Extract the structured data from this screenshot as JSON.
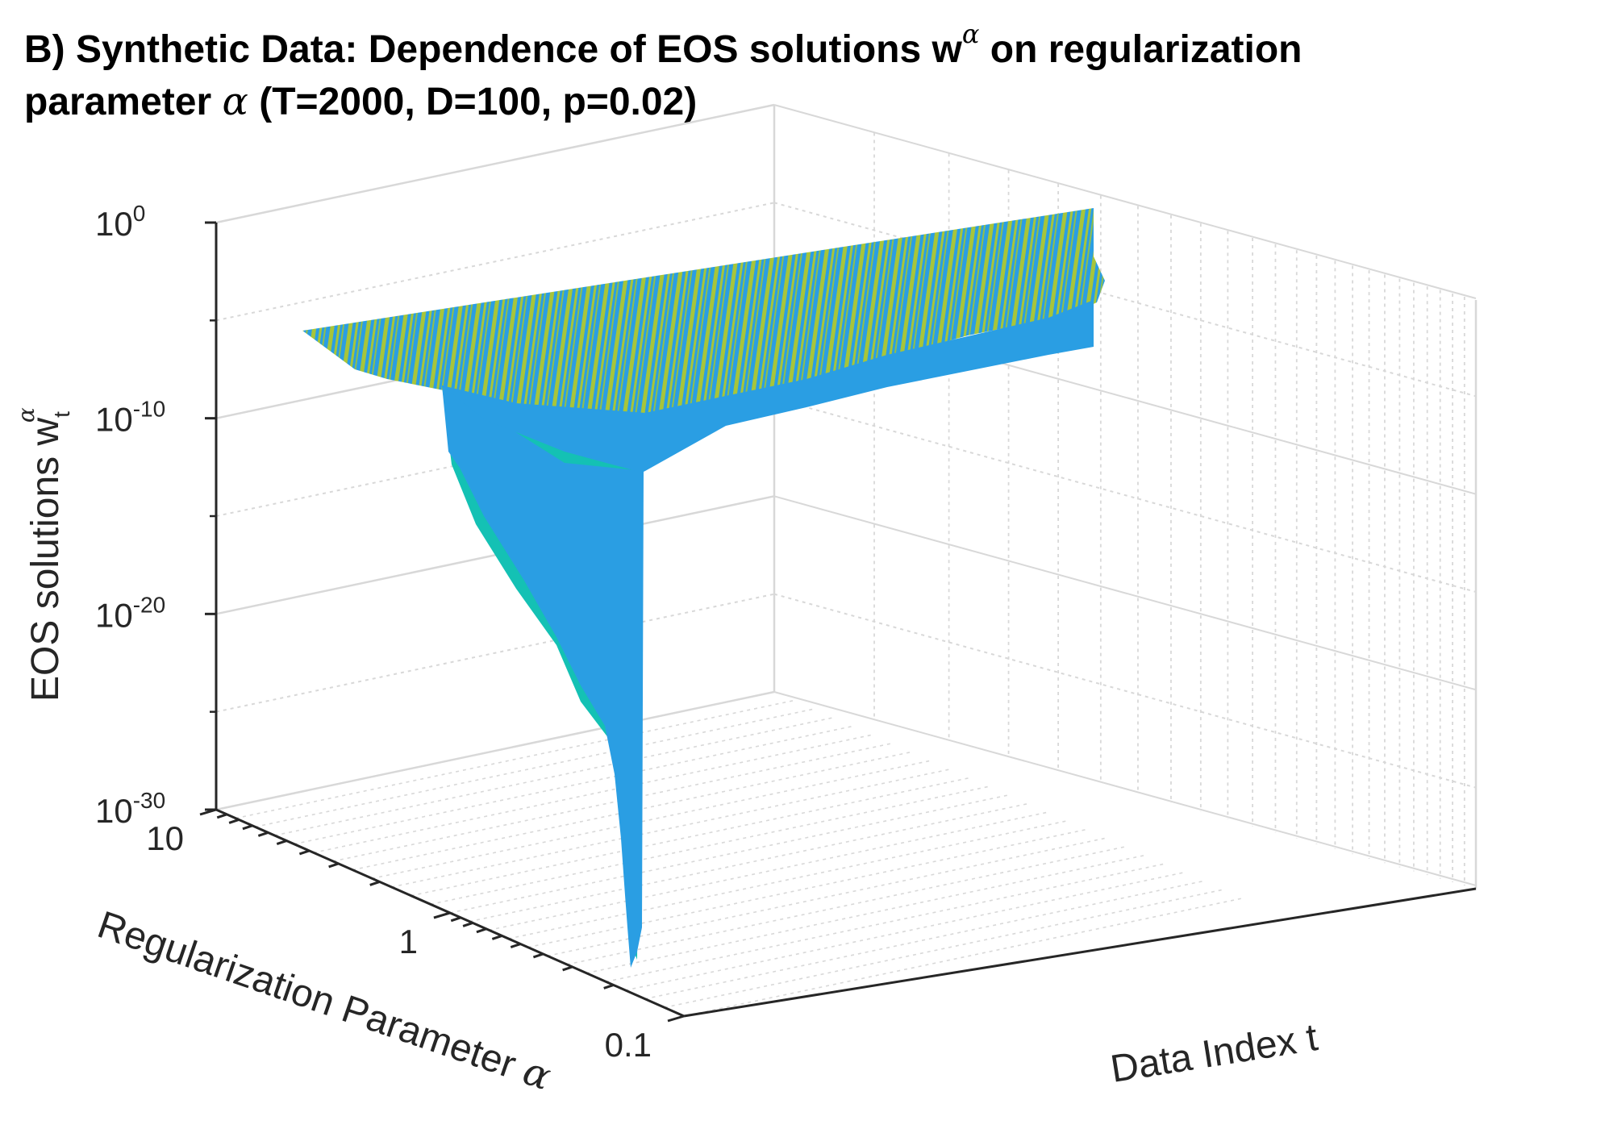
{
  "chart_data": {
    "type": "surface",
    "title_line1": "B) Synthetic Data: Dependence of EOS solutions w",
    "title_sup": "α",
    "title_line1_end": " on regularization",
    "title_line2_pre": "parameter ",
    "title_line2_greek": "α",
    "title_line2_end": " (T=2000, D=100, p=0.02)",
    "zlabel": "EOS solutions w",
    "zlabel_sub": "t",
    "zlabel_sup": "α",
    "ylabel": "Regularization Parameter ",
    "ylabel_greek": "α",
    "xlabel": "Data Index t",
    "z_scale": "log",
    "z_ticks": [
      {
        "base": "10",
        "exp": "0"
      },
      {
        "base": "10",
        "exp": "-10"
      },
      {
        "base": "10",
        "exp": "-20"
      },
      {
        "base": "10",
        "exp": "-30"
      }
    ],
    "zlim": [
      1e-30,
      1
    ],
    "y_scale": "log",
    "y_ticks": [
      "10",
      "1",
      "0.1"
    ],
    "ylim": [
      0.1,
      10
    ],
    "xlim": [
      1,
      2000
    ],
    "grid": true,
    "surface_plateau_value": 1e-05,
    "surface_plateau_lower_edge": 1e-12,
    "surface_min_at_small_alpha": 1e-30,
    "colors": {
      "surface_blue": "#2a9ee3",
      "surface_yellow": "#a7c53a",
      "surface_teal": "#14c1b4",
      "axis": "#262626",
      "grid": "#d8d8d8"
    }
  }
}
